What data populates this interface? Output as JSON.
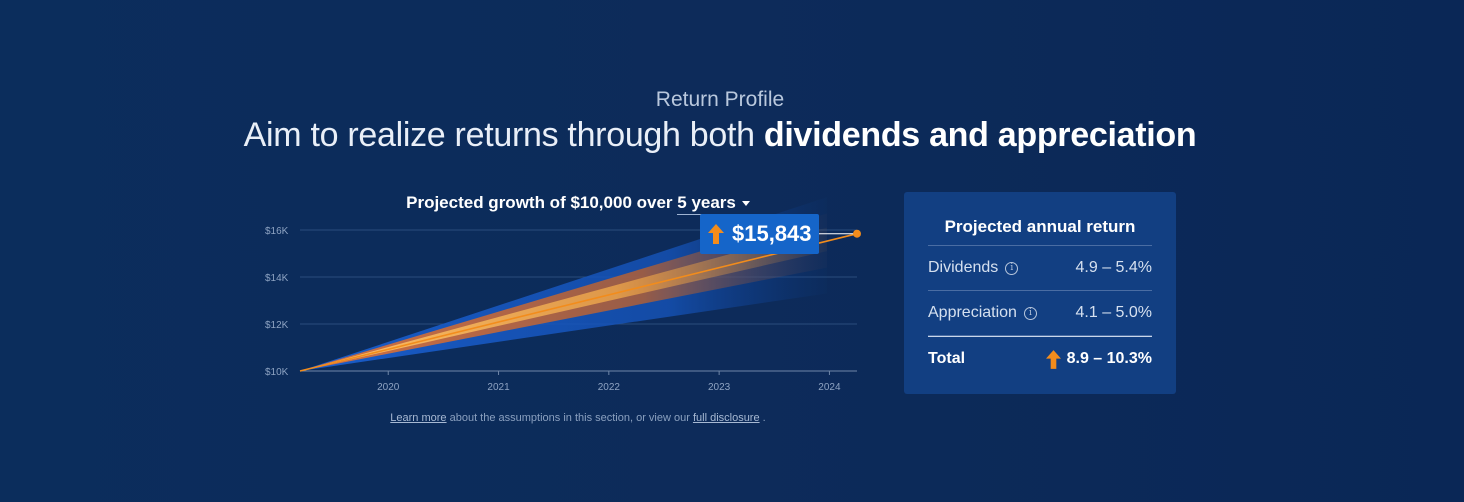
{
  "header": {
    "eyebrow": "Return Profile",
    "headline_prefix": "Aim to realize returns through both ",
    "headline_bold": "dividends and appreciation"
  },
  "chart_header": {
    "prefix": "Projected growth of $10,000 over ",
    "period": "5 years"
  },
  "callout": {
    "value": "$15,843",
    "icon": "arrow-up-icon"
  },
  "footnote": {
    "learn_more": "Learn more",
    "middle": " about the assumptions in this section, or view our ",
    "disclosure": "full disclosure",
    "end": " ."
  },
  "panel": {
    "title": "Projected annual return",
    "rows": [
      {
        "label": "Dividends",
        "value": "4.9 – 5.4%"
      },
      {
        "label": "Appreciation",
        "value": "4.1 – 5.0%"
      }
    ],
    "total": {
      "label": "Total",
      "value": "8.9 – 10.3%",
      "icon": "arrow-up-icon"
    }
  },
  "colors": {
    "accent_orange": "#f28c1c",
    "callout_blue": "#1565c9",
    "panel_bg": "#123f82"
  },
  "chart_data": {
    "type": "line",
    "title": "Projected growth of $10,000 over 5 years",
    "x_ticks": [
      "2020",
      "2021",
      "2022",
      "2023",
      "2024"
    ],
    "y_ticks": [
      "$10K",
      "$12K",
      "$14K",
      "$16K"
    ],
    "xlim": [
      2019.2,
      2024.25
    ],
    "ylim": [
      10000,
      16000
    ],
    "series": [
      {
        "x": [
          2019.2,
          2024.25
        ],
        "y": [
          10000,
          15843
        ]
      }
    ],
    "bands": [
      {
        "low": 13300,
        "high": 17400
      },
      {
        "low": 14400,
        "high": 16700
      },
      {
        "low": 15100,
        "high": 16100
      }
    ],
    "end_value": 15843,
    "grid": true
  }
}
